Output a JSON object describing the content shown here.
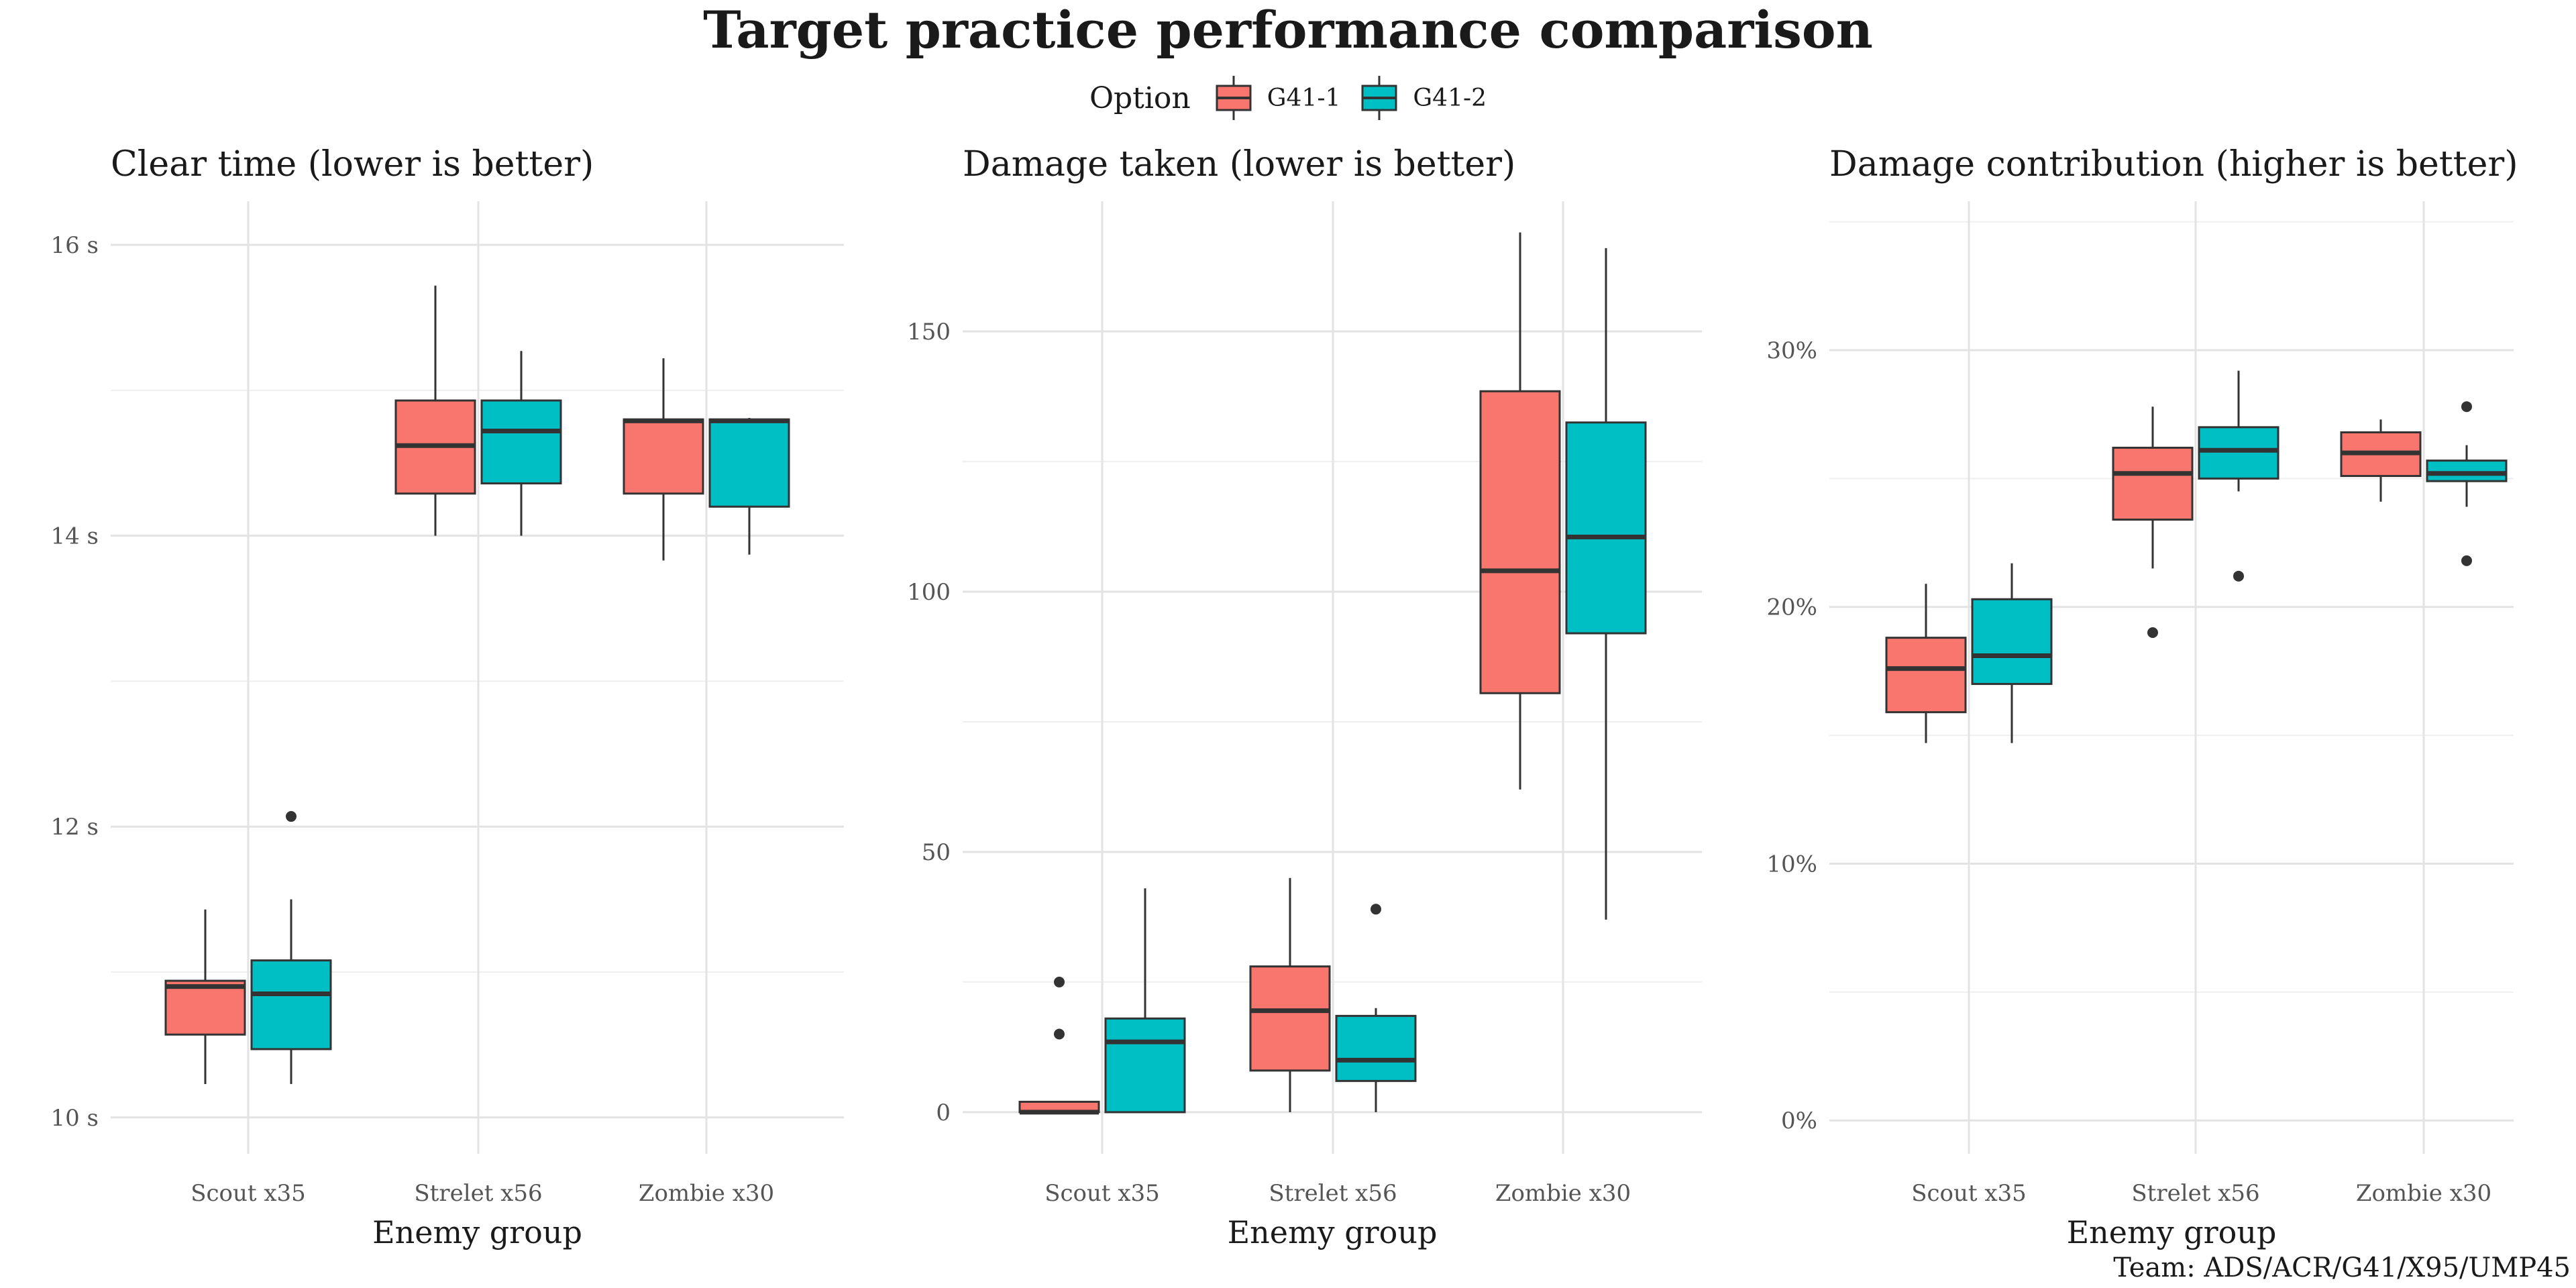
{
  "title": "Target practice performance comparison",
  "legend": {
    "title": "Option",
    "items": [
      {
        "label": "G41-1",
        "color": "#F8766D"
      },
      {
        "label": "G41-2",
        "color": "#00BFC4"
      }
    ]
  },
  "caption": "Team: ADS/ACR/G41/X95/UMP45",
  "chart_data": [
    {
      "type": "box",
      "title": "Clear time (lower is better)",
      "xlabel": "Enemy group",
      "ylabel": "",
      "categories": [
        "Scout x35",
        "Strelet x56",
        "Zombie x30"
      ],
      "yticks": [
        10,
        12,
        14,
        16
      ],
      "ytick_labels": [
        "10 s",
        "12 s",
        "14 s",
        "16 s"
      ],
      "yminor": [
        11,
        13,
        15
      ],
      "ylim": [
        9.75,
        16.3
      ],
      "grid": true,
      "series": [
        {
          "name": "G41-1",
          "boxes": [
            {
              "min": 10.23,
              "q1": 10.57,
              "median": 10.9,
              "q3": 10.94,
              "max": 11.43,
              "outliers": []
            },
            {
              "min": 14.0,
              "q1": 14.29,
              "median": 14.62,
              "q3": 14.93,
              "max": 15.72,
              "outliers": []
            },
            {
              "min": 13.83,
              "q1": 14.29,
              "median": 14.79,
              "q3": 14.8,
              "max": 15.22,
              "outliers": []
            }
          ]
        },
        {
          "name": "G41-2",
          "boxes": [
            {
              "min": 10.23,
              "q1": 10.47,
              "median": 10.85,
              "q3": 11.08,
              "max": 11.5,
              "outliers": [
                12.07
              ]
            },
            {
              "min": 14.0,
              "q1": 14.36,
              "median": 14.72,
              "q3": 14.93,
              "max": 15.27,
              "outliers": []
            },
            {
              "min": 13.87,
              "q1": 14.2,
              "median": 14.79,
              "q3": 14.8,
              "max": 14.81,
              "outliers": []
            }
          ]
        }
      ]
    },
    {
      "type": "box",
      "title": "Damage taken (lower is better)",
      "xlabel": "Enemy group",
      "ylabel": "",
      "categories": [
        "Scout x35",
        "Strelet x56",
        "Zombie x30"
      ],
      "yticks": [
        0,
        50,
        100,
        150
      ],
      "ytick_labels": [
        "0",
        "50",
        "100",
        "150"
      ],
      "yminor": [
        25,
        75,
        125
      ],
      "ylim": [
        -8,
        175
      ],
      "grid": true,
      "series": [
        {
          "name": "G41-1",
          "boxes": [
            {
              "min": 0,
              "q1": 0,
              "median": 0,
              "q3": 2,
              "max": 2,
              "outliers": [
                15,
                25
              ]
            },
            {
              "min": 0,
              "q1": 8,
              "median": 19.5,
              "q3": 28,
              "max": 45,
              "outliers": []
            },
            {
              "min": 62,
              "q1": 80.5,
              "median": 104,
              "q3": 138.5,
              "max": 169,
              "outliers": []
            }
          ]
        },
        {
          "name": "G41-2",
          "boxes": [
            {
              "min": 0,
              "q1": 0,
              "median": 13.5,
              "q3": 18,
              "max": 43,
              "outliers": []
            },
            {
              "min": 0,
              "q1": 6,
              "median": 10,
              "q3": 18.5,
              "max": 20,
              "outliers": [
                39
              ]
            },
            {
              "min": 37,
              "q1": 92,
              "median": 110.5,
              "q3": 132.5,
              "max": 166,
              "outliers": []
            }
          ]
        }
      ]
    },
    {
      "type": "box",
      "title": "Damage contribution (higher is better)",
      "xlabel": "Enemy group",
      "ylabel": "",
      "categories": [
        "Scout x35",
        "Strelet x56",
        "Zombie x30"
      ],
      "yticks": [
        0,
        10,
        20,
        30
      ],
      "ytick_labels": [
        "0%",
        "10%",
        "20%",
        "30%"
      ],
      "yminor": [
        5,
        15,
        25,
        35
      ],
      "ylim": [
        -1.3,
        35.8
      ],
      "grid": true,
      "series": [
        {
          "name": "G41-1",
          "boxes": [
            {
              "min": 14.7,
              "q1": 15.9,
              "median": 17.6,
              "q3": 18.8,
              "max": 20.9,
              "outliers": []
            },
            {
              "min": 21.5,
              "q1": 23.4,
              "median": 25.2,
              "q3": 26.2,
              "max": 27.8,
              "outliers": [
                19.0
              ]
            },
            {
              "min": 24.1,
              "q1": 25.1,
              "median": 26.0,
              "q3": 26.8,
              "max": 27.3,
              "outliers": []
            }
          ]
        },
        {
          "name": "G41-2",
          "boxes": [
            {
              "min": 14.7,
              "q1": 17.0,
              "median": 18.1,
              "q3": 20.3,
              "max": 21.7,
              "outliers": []
            },
            {
              "min": 24.5,
              "q1": 25.0,
              "median": 26.1,
              "q3": 27.0,
              "max": 29.2,
              "outliers": [
                21.2
              ]
            },
            {
              "min": 23.9,
              "q1": 24.9,
              "median": 25.2,
              "q3": 25.7,
              "max": 26.3,
              "outliers": [
                21.8,
                27.8
              ]
            }
          ]
        }
      ]
    }
  ]
}
